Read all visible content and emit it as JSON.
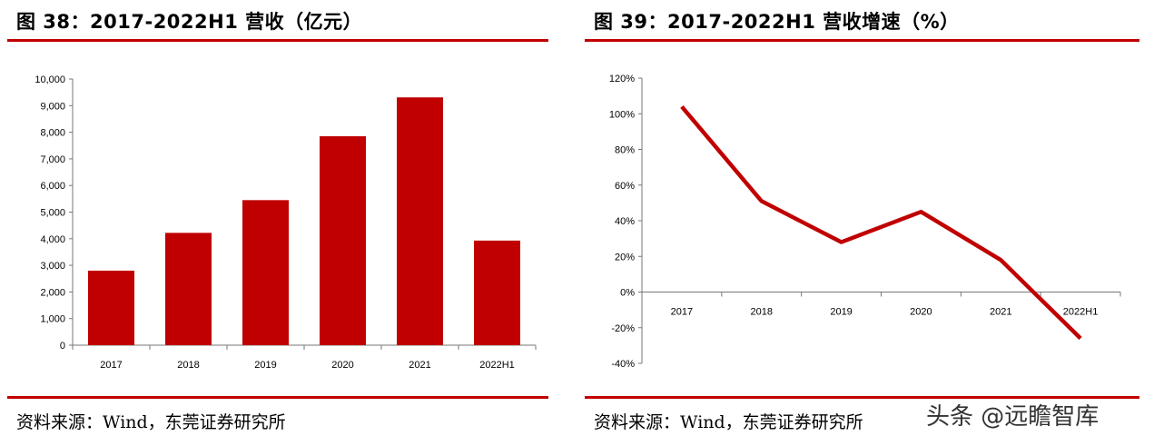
{
  "left": {
    "title": "图 38：2017-2022H1 营收（亿元）",
    "source": "资料来源：Wind，东莞证券研究所"
  },
  "right": {
    "title": "图 39：2017-2022H1 营收增速（%）",
    "source": "资料来源：Wind，东莞证券研究所"
  },
  "watermark": "头条 @远瞻智库",
  "accent_color": "#c00000",
  "chart_data": [
    {
      "type": "bar",
      "categories": [
        "2017",
        "2018",
        "2019",
        "2020",
        "2021",
        "2022H1"
      ],
      "values": [
        2800,
        4220,
        5450,
        7850,
        9310,
        3930
      ],
      "ylim": [
        0,
        10000
      ],
      "yticks": [
        0,
        1000,
        2000,
        3000,
        4000,
        5000,
        6000,
        7000,
        8000,
        9000,
        10000
      ],
      "ytick_labels": [
        "0",
        "1,000",
        "2,000",
        "3,000",
        "4,000",
        "5,000",
        "6,000",
        "7,000",
        "8,000",
        "9,000",
        "10,000"
      ],
      "grid": false,
      "color": "#c00000"
    },
    {
      "type": "line",
      "categories": [
        "2017",
        "2018",
        "2019",
        "2020",
        "2021",
        "2022H1"
      ],
      "values": [
        104,
        51,
        28,
        45,
        18,
        -26
      ],
      "ylim": [
        -40,
        120
      ],
      "yticks": [
        -40,
        -20,
        0,
        20,
        40,
        60,
        80,
        100,
        120
      ],
      "ytick_labels": [
        "-40%",
        "-20%",
        "0%",
        "20%",
        "40%",
        "60%",
        "80%",
        "100%",
        "120%"
      ],
      "grid": false,
      "color": "#c00000"
    }
  ]
}
